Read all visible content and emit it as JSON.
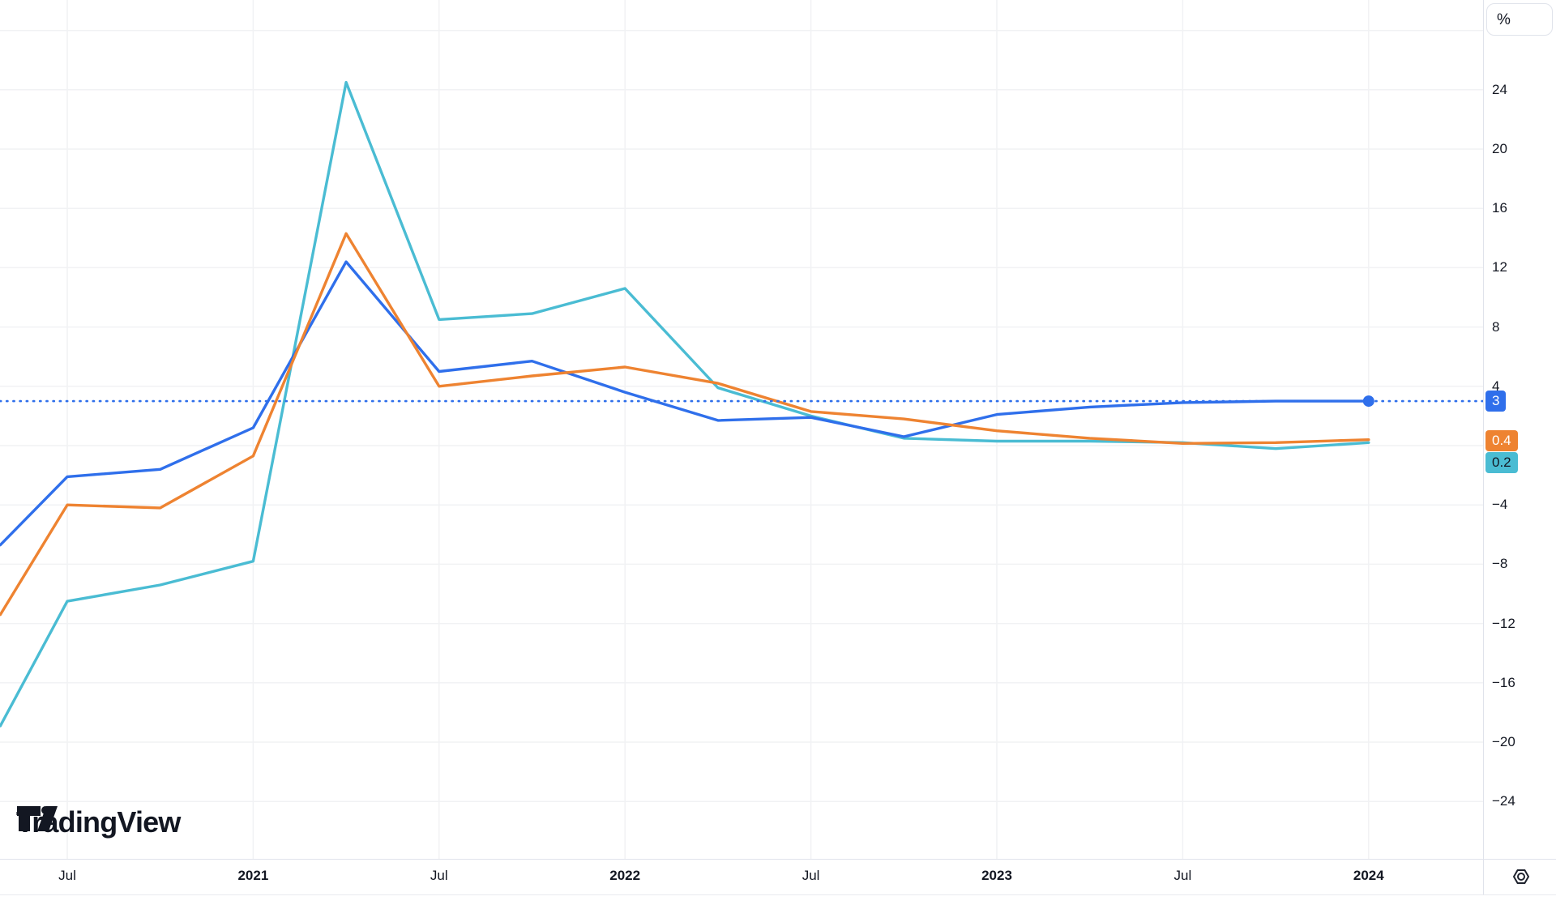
{
  "watermark": {
    "text": "TradingView"
  },
  "price_axis": {
    "unit_button": "%"
  },
  "chart_data": {
    "type": "line",
    "title": "",
    "unit": "%",
    "grid": "on",
    "legend_position": "none",
    "x_axis": {
      "ticks": [
        {
          "label": "Jul",
          "qi": 0,
          "bold": false
        },
        {
          "label": "2021",
          "qi": 2,
          "bold": true
        },
        {
          "label": "Jul",
          "qi": 4,
          "bold": false
        },
        {
          "label": "2022",
          "qi": 6,
          "bold": true
        },
        {
          "label": "Jul",
          "qi": 8,
          "bold": false
        },
        {
          "label": "2023",
          "qi": 10,
          "bold": true
        },
        {
          "label": "Jul",
          "qi": 12,
          "bold": false
        },
        {
          "label": "2024",
          "qi": 14,
          "bold": true
        }
      ]
    },
    "y_axis": {
      "unit": "%",
      "tick_values": [
        24,
        20,
        16,
        12,
        8,
        4,
        -4,
        -8,
        -12,
        -16,
        -20,
        -24
      ],
      "grid_values": [
        28,
        24,
        20,
        16,
        12,
        8,
        4,
        0,
        -4,
        -8,
        -12,
        -16,
        -20,
        -24
      ],
      "range": [
        -28,
        30
      ]
    },
    "categories": [
      "Jul 2020",
      "Oct 2020",
      "Jan 2021",
      "Apr 2021",
      "Jul 2021",
      "Oct 2021",
      "Jan 2022",
      "Apr 2022",
      "Jul 2022",
      "Oct 2022",
      "Jan 2023",
      "Apr 2023",
      "Jul 2023",
      "Oct 2023",
      "Jan 2024"
    ],
    "series": [
      {
        "name": "series-teal",
        "color": "#4ABCD3",
        "points": [
          [
            -0.72,
            -18.9
          ],
          [
            0,
            -10.5
          ],
          [
            1,
            -9.4
          ],
          [
            2,
            -7.8
          ],
          [
            3,
            24.5
          ],
          [
            4,
            8.5
          ],
          [
            5,
            8.9
          ],
          [
            6,
            10.6
          ],
          [
            7,
            3.9
          ],
          [
            8,
            2.0
          ],
          [
            9,
            0.5
          ],
          [
            10,
            0.3
          ],
          [
            11,
            0.3
          ],
          [
            12,
            0.2
          ],
          [
            13,
            -0.2
          ],
          [
            14,
            0.2
          ]
        ]
      },
      {
        "name": "series-blue",
        "color": "#2F6FEB",
        "end_marker": true,
        "level_line": true,
        "points": [
          [
            -0.72,
            -6.7
          ],
          [
            0,
            -2.1
          ],
          [
            1,
            -1.6
          ],
          [
            2,
            1.2
          ],
          [
            3,
            12.4
          ],
          [
            4,
            5.0
          ],
          [
            5,
            5.7
          ],
          [
            6,
            3.6
          ],
          [
            7,
            1.7
          ],
          [
            8,
            1.9
          ],
          [
            9,
            0.6
          ],
          [
            10,
            2.1
          ],
          [
            11,
            2.6
          ],
          [
            12,
            2.9
          ],
          [
            13,
            3.0
          ],
          [
            14,
            3.0
          ]
        ]
      },
      {
        "name": "series-orange",
        "color": "#EE8331",
        "points": [
          [
            -0.72,
            -11.4
          ],
          [
            0,
            -4.0
          ],
          [
            1,
            -4.2
          ],
          [
            2,
            -0.7
          ],
          [
            3,
            14.3
          ],
          [
            4,
            4.0
          ],
          [
            5,
            4.7
          ],
          [
            6,
            5.3
          ],
          [
            7,
            4.2
          ],
          [
            8,
            2.3
          ],
          [
            9,
            1.8
          ],
          [
            10,
            1.0
          ],
          [
            11,
            0.5
          ],
          [
            12,
            0.15
          ],
          [
            13,
            0.2
          ],
          [
            14,
            0.4
          ]
        ]
      }
    ],
    "value_badges": [
      {
        "text": "3",
        "bg": "#2F6FEB",
        "fg": "#FFFFFF",
        "y": 495
      },
      {
        "text": "0.4",
        "bg": "#EE8331",
        "fg": "#FFFFFF",
        "y": 544
      },
      {
        "text": "0.2",
        "bg": "#4ABCD3",
        "fg": "#131722",
        "y": 571
      }
    ]
  }
}
